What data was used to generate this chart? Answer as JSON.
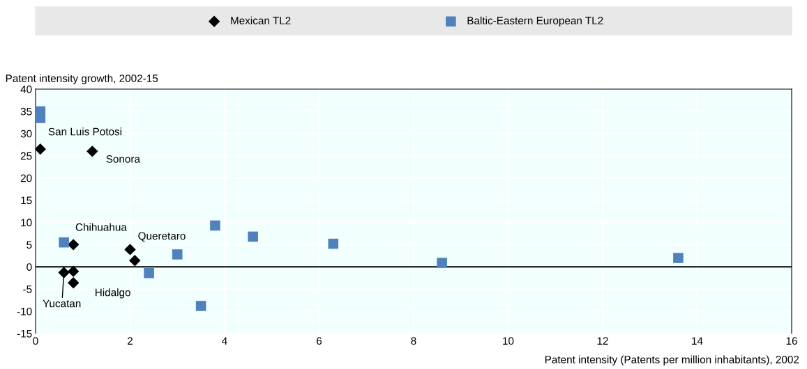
{
  "chart_data": {
    "type": "scatter",
    "xlabel": "Patent intensity (Patents per million inhabitants), 2002",
    "ylabel": "Patent intensity growth, 2002-15",
    "series": [
      {
        "name": "Mexican TL2",
        "color": "#000000",
        "marker": "diamond",
        "x": [
          0.1,
          1.2,
          0.8,
          2.0,
          2.1,
          0.6,
          0.8,
          0.8
        ],
        "values": [
          26.5,
          26,
          5,
          3.9,
          1.4,
          -1.3,
          -1,
          -3.6
        ]
      },
      {
        "name": "Baltic-Eastern European TL2",
        "color": "#4f81bd",
        "marker": "square",
        "x": [
          0.1,
          0.1,
          0.6,
          2.4,
          3.0,
          3.8,
          4.6,
          6.3,
          8.6,
          13.6,
          3.5
        ],
        "values": [
          35,
          33.5,
          5.5,
          -1.4,
          2.8,
          9.3,
          6.8,
          5.2,
          0.9,
          2.0,
          -8.8
        ]
      }
    ],
    "annotations": [
      {
        "text": "San Luis Potosi",
        "x": 0.1,
        "y": 26.5
      },
      {
        "text": "Sonora",
        "x": 1.2,
        "y": 26
      },
      {
        "text": "Chihuahua",
        "x": 0.8,
        "y": 5
      },
      {
        "text": "Queretaro",
        "x": 2.0,
        "y": 3.9
      },
      {
        "text": "Hidalgo",
        "x": 0.8,
        "y": -3.6
      },
      {
        "text": "Yucatan",
        "x": 0.6,
        "y": -1.3
      }
    ],
    "ref_lines": [
      {
        "axis": "y",
        "value": 0,
        "color": "#000000"
      }
    ],
    "xlim": [
      0,
      16
    ],
    "xticks": [
      0,
      2,
      4,
      6,
      8,
      10,
      12,
      14,
      16
    ],
    "ylim": [
      -15,
      40
    ],
    "yticks": [
      -15,
      -10,
      -5,
      0,
      5,
      10,
      15,
      20,
      25,
      30,
      35,
      40
    ],
    "grid": true,
    "legend": "top"
  }
}
